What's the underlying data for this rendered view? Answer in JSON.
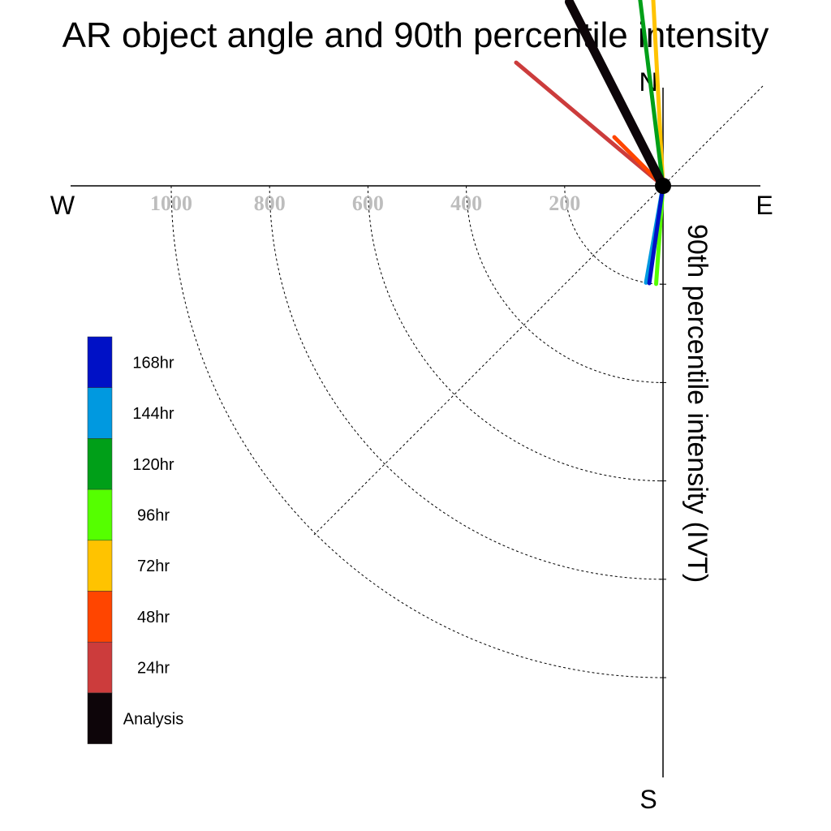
{
  "chart_data": {
    "type": "polar-vector",
    "title": "AR object angle and 90th percentile intensity",
    "axis_label": "90th percentile intensity (IVT)",
    "compass": {
      "north": "N",
      "south": "S",
      "east": "E",
      "west": "W"
    },
    "radial_ticks": [
      {
        "value": 200,
        "label": "200"
      },
      {
        "value": 400,
        "label": "400"
      },
      {
        "value": 600,
        "label": "600"
      },
      {
        "value": 800,
        "label": "800"
      },
      {
        "value": 1000,
        "label": "1000"
      }
    ],
    "rmax": 1200,
    "series": [
      {
        "name": "Analysis",
        "color": "#0d0509",
        "magnitude": 420,
        "angle_deg": 243,
        "weight": "bold"
      },
      {
        "name": "24hr",
        "color": "#cc3c3c",
        "magnitude": 390,
        "angle_deg": 220
      },
      {
        "name": "48hr",
        "color": "#ff4500",
        "magnitude": 140,
        "angle_deg": 225
      },
      {
        "name": "72hr",
        "color": "#ffc300",
        "magnitude": 510,
        "angle_deg": 267
      },
      {
        "name": "96hr",
        "color": "#55ff00",
        "magnitude": 200,
        "angle_deg": 94
      },
      {
        "name": "120hr",
        "color": "#009f18",
        "magnitude": 560,
        "angle_deg": 263
      },
      {
        "name": "144hr",
        "color": "#0099e0",
        "magnitude": 200,
        "angle_deg": 100
      },
      {
        "name": "168hr",
        "color": "#0011c6",
        "magnitude": 200,
        "angle_deg": 98
      }
    ],
    "legend": {
      "placement": "left",
      "entries": [
        {
          "label": "168hr",
          "color": "#0011c6"
        },
        {
          "label": "144hr",
          "color": "#0099e0"
        },
        {
          "label": "120hr",
          "color": "#009f18"
        },
        {
          "label": "96hr",
          "color": "#55ff00"
        },
        {
          "label": "72hr",
          "color": "#ffc300"
        },
        {
          "label": "48hr",
          "color": "#ff4500"
        },
        {
          "label": "24hr",
          "color": "#cc3c3c"
        },
        {
          "label": "Analysis",
          "color": "#0d0509"
        }
      ]
    }
  }
}
